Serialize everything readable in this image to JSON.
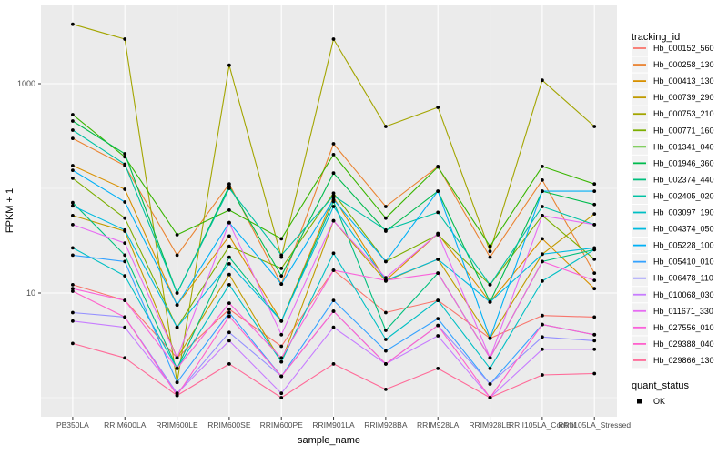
{
  "figure": {
    "bg": "#FFFFFF",
    "panel_bg": "#EBEBEB",
    "grid_color": "#FFFFFF",
    "tick_text_color": "#4D4D4D",
    "title_text_color": "#000000",
    "point_color": "#000000",
    "legend_key_bg": "#F2F2F2"
  },
  "chart_data": {
    "type": "line",
    "title": "",
    "xlabel": "sample_name",
    "ylabel": "FPKM + 1",
    "y_scale": "log10",
    "y_major_ticks": [
      10,
      1000
    ],
    "y_major_tick_labels": [
      "10",
      "1000"
    ],
    "y_minor_ticks": [
      1,
      100
    ],
    "grid": true,
    "legend_position": "right",
    "legend_title": "tracking_id",
    "legend2_title": "quant_status",
    "legend2_items": [
      {
        "label": "OK",
        "symbol": "point",
        "color": "#000000"
      }
    ],
    "categories": [
      "PB350LA",
      "RRIM600LA",
      "RRIM600LE",
      "RRIM600SE",
      "RRIM600PE",
      "RRIM901LA",
      "RRIM928BA",
      "RRIM928LA",
      "RRIM928LE",
      "RRII105LA_Control",
      "RRII105LA_Stressed"
    ],
    "series": [
      {
        "name": "Hb_000152_560",
        "color": "#F8766D",
        "values": [
          12,
          8.5,
          2.4,
          7,
          3.1,
          16.5,
          6.5,
          8.5,
          3.7,
          6.1,
          5.9
        ]
      },
      {
        "name": "Hb_000258_130",
        "color": "#EA8331",
        "values": [
          300,
          165,
          23,
          110,
          12.2,
          267,
          67,
          162,
          22,
          120,
          15.5
        ]
      },
      {
        "name": "Hb_000413_130",
        "color": "#D89000",
        "values": [
          165,
          98,
          7.7,
          35,
          5.4,
          82,
          13.2,
          37,
          8.2,
          33,
          11
        ]
      },
      {
        "name": "Hb_000739_290",
        "color": "#C09B00",
        "values": [
          55,
          39,
          2.4,
          15,
          2.2,
          49,
          13,
          21,
          3.7,
          23.5,
          57
        ]
      },
      {
        "name": "Hb_000753_210",
        "color": "#A3A500",
        "values": [
          3700,
          2670,
          1.4,
          1500,
          22,
          2670,
          390,
          594,
          25,
          1080,
          390
        ]
      },
      {
        "name": "Hb_000771_160",
        "color": "#7CAE00",
        "values": [
          125,
          52,
          4.7,
          28,
          17.2,
          90,
          20,
          36,
          12,
          55,
          21
        ]
      },
      {
        "name": "Hb_001341_040",
        "color": "#39B600",
        "values": [
          506,
          200,
          36,
          62,
          33,
          210,
          52,
          160,
          28,
          162,
          110
        ]
      },
      {
        "name": "Hb_001946_360",
        "color": "#00BB4E",
        "values": [
          440,
          214,
          10,
          105,
          14.6,
          140,
          39,
          94,
          8.2,
          94,
          70
        ]
      },
      {
        "name": "Hb_002374_440",
        "color": "#00BF7D",
        "values": [
          73,
          23,
          1.9,
          22,
          5.4,
          75,
          4.4,
          15.5,
          2.4,
          20,
          26
        ]
      },
      {
        "name": "Hb_002405_020",
        "color": "#00C1A3",
        "values": [
          360,
          170,
          10,
          100,
          23,
          85,
          40,
          59,
          12,
          67,
          45
        ]
      },
      {
        "name": "Hb_003097_190",
        "color": "#00BFC4",
        "values": [
          27,
          14.6,
          1.9,
          12,
          2.2,
          24,
          3.6,
          8.5,
          1.9,
          13,
          26
        ]
      },
      {
        "name": "Hb_004374_050",
        "color": "#00BADE",
        "values": [
          68,
          40,
          4.7,
          19,
          5.4,
          67,
          13.2,
          21,
          8.2,
          23.5,
          27
        ]
      },
      {
        "name": "Hb_005228_100",
        "color": "#00B0F6",
        "values": [
          149,
          74,
          7.7,
          47,
          12.2,
          78,
          20,
          94,
          3.7,
          94,
          94
        ]
      },
      {
        "name": "Hb_005410_010",
        "color": "#35A2FF",
        "values": [
          23,
          20,
          1.4,
          6.5,
          1.6,
          8.5,
          2.8,
          5.7,
          1.35,
          5,
          4
        ]
      },
      {
        "name": "Hb_006478_110",
        "color": "#9590FF",
        "values": [
          6.5,
          5.9,
          1.1,
          4.2,
          1.6,
          6.7,
          2.1,
          4.9,
          1.35,
          3.8,
          3.5
        ]
      },
      {
        "name": "Hb_010068_030",
        "color": "#C77CFF",
        "values": [
          5.4,
          4.7,
          1.1,
          3.5,
          1.1,
          4.7,
          2.1,
          3.9,
          1,
          2.9,
          2.9
        ]
      },
      {
        "name": "Hb_011671_330",
        "color": "#E76BF3",
        "values": [
          45,
          30,
          2.4,
          47,
          4,
          49,
          14,
          37,
          2.4,
          55,
          45
        ]
      },
      {
        "name": "Hb_027556_010",
        "color": "#FA62DB",
        "values": [
          11,
          8.5,
          1.9,
          8,
          2.4,
          16.5,
          13.2,
          15.5,
          2.4,
          20,
          13.2
        ]
      },
      {
        "name": "Hb_029388_040",
        "color": "#FF61CC",
        "values": [
          10.4,
          5.9,
          1.05,
          6,
          1.6,
          6.7,
          2.1,
          4.9,
          1,
          5,
          4
        ]
      },
      {
        "name": "Hb_029866_130",
        "color": "#FF6A98",
        "values": [
          3.3,
          2.4,
          1.05,
          2.1,
          1,
          2.1,
          1.2,
          1.9,
          1,
          1.65,
          1.7
        ]
      }
    ]
  }
}
